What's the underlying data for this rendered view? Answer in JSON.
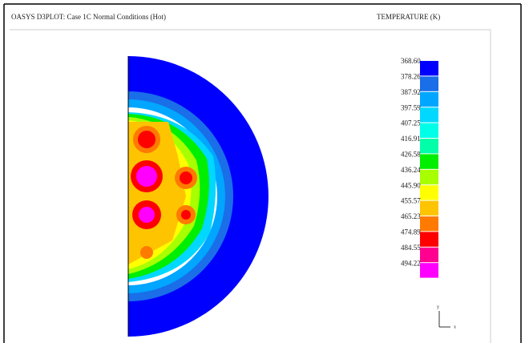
{
  "header": {
    "title": "OASYS D3PLOT: Case 1C Normal Conditions (Hot)",
    "quantity": "TEMPERATURE (K)"
  },
  "legend": {
    "levels": [
      {
        "label": "368.60",
        "color": "#0000ff"
      },
      {
        "label": "378.26",
        "color": "#1a6ee8"
      },
      {
        "label": "387.92",
        "color": "#00a6ff"
      },
      {
        "label": "397.59",
        "color": "#00d8ff"
      },
      {
        "label": "407.25",
        "color": "#00ffe8"
      },
      {
        "label": "416.91",
        "color": "#00ffa8"
      },
      {
        "label": "426.58",
        "color": "#00ee00"
      },
      {
        "label": "436.24",
        "color": "#a8ff00"
      },
      {
        "label": "445.90",
        "color": "#ffff00"
      },
      {
        "label": "455.57",
        "color": "#ffc400"
      },
      {
        "label": "465.23",
        "color": "#ff7a00"
      },
      {
        "label": "474.89",
        "color": "#ff0000"
      },
      {
        "label": "484.55",
        "color": "#ff0090"
      },
      {
        "label": "494.22",
        "color": "#ff00ff"
      }
    ]
  },
  "triad": {
    "y": "y",
    "x": "x"
  }
}
